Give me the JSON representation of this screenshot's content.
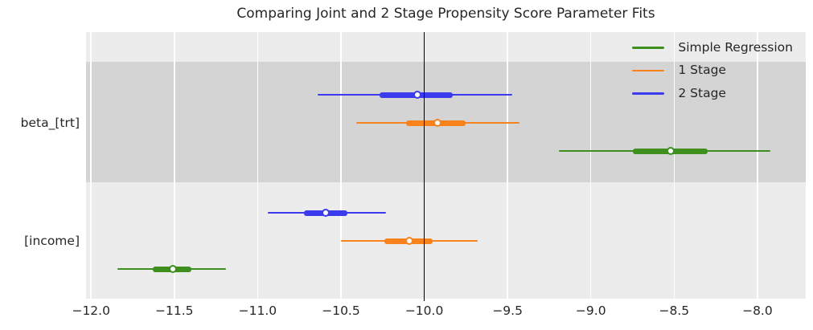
{
  "chart_data": {
    "type": "scatter",
    "subtype": "forest-plot-with-error-bars",
    "title": "Comparing Joint and 2 Stage Propensity Score Parameter Fits",
    "xlabel": "",
    "ylabel": "",
    "categories": [
      "beta_[trt]",
      "[income]"
    ],
    "x_ticks": [
      -12.0,
      -11.5,
      -11.0,
      -10.5,
      -10.0,
      -9.5,
      -9.0,
      -8.5,
      -8.0
    ],
    "x_tick_labels": [
      "−12.0",
      "−11.5",
      "−11.0",
      "−10.5",
      "−10.0",
      "−9.5",
      "−9.0",
      "−8.5",
      "−8.0"
    ],
    "xlim": [
      -12.03,
      -7.71
    ],
    "reference_line_x": -10.0,
    "reference_line_color": "#000000",
    "grid": "vertical-white-gridlines",
    "plot_bg_color": "#ececec",
    "band_dark_color": "#d4d4d4",
    "text_color": "#262626",
    "legend_position": "upper-right",
    "row_order_top_to_bottom": [
      "2 Stage",
      "1 Stage",
      "Simple Regression"
    ],
    "series": [
      {
        "name": "Simple Regression",
        "color": "#3f8f1f",
        "points": [
          {
            "category": "beta_[trt]",
            "estimate": -8.52,
            "ci_inner": [
              -8.75,
              -8.3
            ],
            "ci_outer": [
              -9.19,
              -7.92
            ]
          },
          {
            "category": "[income]",
            "estimate": -11.51,
            "ci_inner": [
              -11.63,
              -11.4
            ],
            "ci_outer": [
              -11.84,
              -11.19
            ]
          }
        ]
      },
      {
        "name": "1 Stage",
        "color": "#f8821c",
        "points": [
          {
            "category": "beta_[trt]",
            "estimate": -9.92,
            "ci_inner": [
              -10.11,
              -9.75
            ],
            "ci_outer": [
              -10.41,
              -9.43
            ]
          },
          {
            "category": "[income]",
            "estimate": -10.09,
            "ci_inner": [
              -10.24,
              -9.95
            ],
            "ci_outer": [
              -10.5,
              -9.68
            ]
          }
        ]
      },
      {
        "name": "2 Stage",
        "color": "#3b3bed",
        "points": [
          {
            "category": "beta_[trt]",
            "estimate": -10.04,
            "ci_inner": [
              -10.27,
              -9.83
            ],
            "ci_outer": [
              -10.64,
              -9.47
            ]
          },
          {
            "category": "[income]",
            "estimate": -10.59,
            "ci_inner": [
              -10.72,
              -10.46
            ],
            "ci_outer": [
              -10.94,
              -10.23
            ]
          }
        ]
      }
    ]
  }
}
